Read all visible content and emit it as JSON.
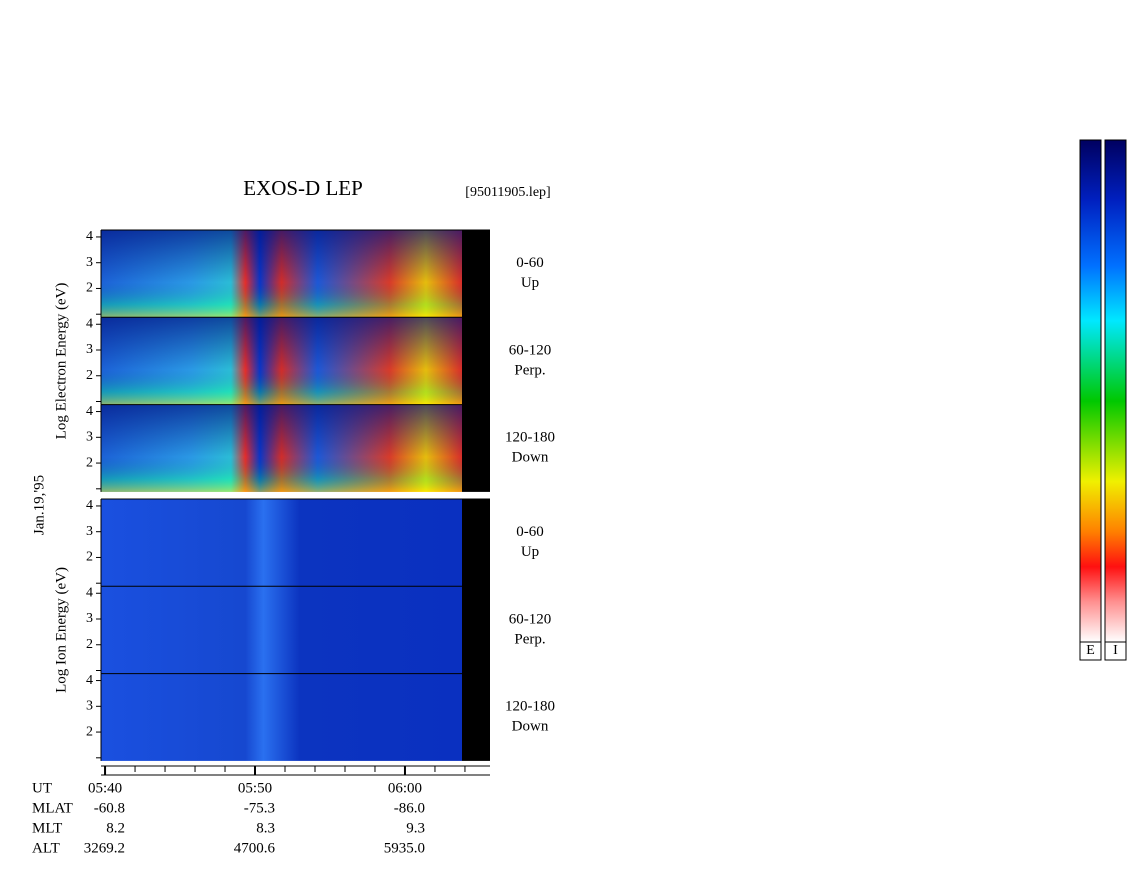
{
  "title": "EXOS-D LEP",
  "file": "[95011905.lep]",
  "date": "Jan.19,'95",
  "groups": [
    {
      "label": "Log Electron Energy (eV)",
      "panels": [
        {
          "range": "0-60",
          "direction": "Up"
        },
        {
          "range": "60-120",
          "direction": "Perp."
        },
        {
          "range": "120-180",
          "direction": "Down"
        }
      ]
    },
    {
      "label": "Log Ion Energy (eV)",
      "panels": [
        {
          "range": "0-60",
          "direction": "Up"
        },
        {
          "range": "60-120",
          "direction": "Perp."
        },
        {
          "range": "120-180",
          "direction": "Down"
        }
      ]
    }
  ],
  "ylim": [
    0.88,
    4.27
  ],
  "yticks": [
    2,
    3,
    4
  ],
  "xlim": [
    -0.27,
    25.67
  ],
  "xticks": [
    {
      "value": 0,
      "label": "05:40"
    },
    {
      "value": 10,
      "label": "05:50"
    },
    {
      "value": 20,
      "label": "06:00"
    }
  ],
  "xminor": [
    2,
    4,
    6,
    8,
    12,
    14,
    16,
    18,
    22,
    24
  ],
  "time_label": "UT",
  "orbit": [
    {
      "name": "MLAT",
      "values": [
        "-60.8",
        "-75.3",
        "-86.0"
      ]
    },
    {
      "name": "MLT",
      "values": [
        "8.2",
        "8.3",
        "9.3"
      ]
    },
    {
      "name": "ALT",
      "values": [
        "3269.2",
        "4700.6",
        "5935.0"
      ]
    }
  ],
  "colorbars": [
    "E",
    "I"
  ]
}
